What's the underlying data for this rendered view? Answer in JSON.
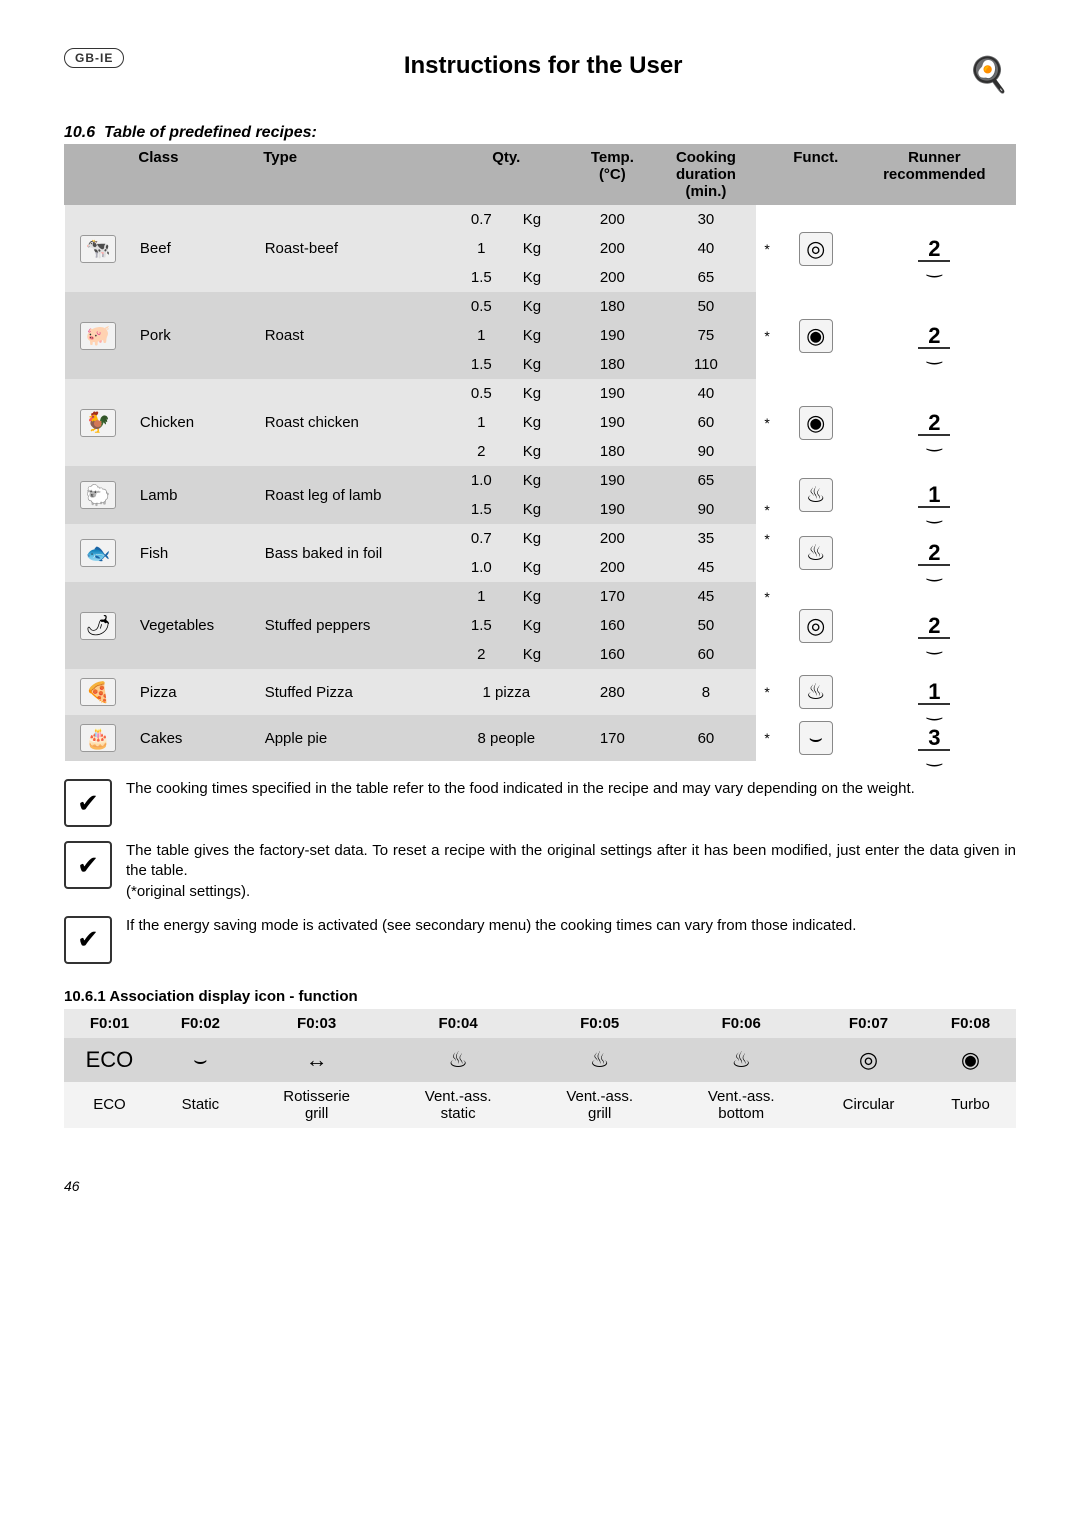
{
  "header": {
    "badge": "GB-IE",
    "title": "Instructions for the User",
    "chef_glyph": "🍳"
  },
  "section": {
    "number": "10.6",
    "title": "Table of predefined recipes:"
  },
  "table": {
    "headers": {
      "class": "Class",
      "type": "Type",
      "qty": "Qty.",
      "temp": "Temp.\n(°C)",
      "duration": "Cooking\nduration\n(min.)",
      "funct": "Funct.",
      "runner": "Runner\nrecommended"
    },
    "groups": [
      {
        "shade": "light",
        "icon": "🐄",
        "class": "Beef",
        "type": "Roast-beef",
        "funct": "◎",
        "runner": "2",
        "rows": [
          {
            "qty": "0.7",
            "unit": "Kg",
            "temp": "200",
            "dur": "30",
            "star": ""
          },
          {
            "qty": "1",
            "unit": "Kg",
            "temp": "200",
            "dur": "40",
            "star": "*"
          },
          {
            "qty": "1.5",
            "unit": "Kg",
            "temp": "200",
            "dur": "65",
            "star": ""
          }
        ]
      },
      {
        "shade": "dark",
        "icon": "🐖",
        "class": "Pork",
        "type": "Roast",
        "funct": "◉",
        "runner": "2",
        "rows": [
          {
            "qty": "0.5",
            "unit": "Kg",
            "temp": "180",
            "dur": "50",
            "star": ""
          },
          {
            "qty": "1",
            "unit": "Kg",
            "temp": "190",
            "dur": "75",
            "star": "*"
          },
          {
            "qty": "1.5",
            "unit": "Kg",
            "temp": "180",
            "dur": "110",
            "star": ""
          }
        ]
      },
      {
        "shade": "light",
        "icon": "🐓",
        "class": "Chicken",
        "type": "Roast chicken",
        "funct": "◉",
        "runner": "2",
        "rows": [
          {
            "qty": "0.5",
            "unit": "Kg",
            "temp": "190",
            "dur": "40",
            "star": ""
          },
          {
            "qty": "1",
            "unit": "Kg",
            "temp": "190",
            "dur": "60",
            "star": "*"
          },
          {
            "qty": "2",
            "unit": "Kg",
            "temp": "180",
            "dur": "90",
            "star": ""
          }
        ]
      },
      {
        "shade": "dark",
        "icon": "🐑",
        "class": "Lamb",
        "type": "Roast leg of lamb",
        "funct": "♨",
        "runner": "1",
        "rows": [
          {
            "qty": "1.0",
            "unit": "Kg",
            "temp": "190",
            "dur": "65",
            "star": ""
          },
          {
            "qty": "1.5",
            "unit": "Kg",
            "temp": "190",
            "dur": "90",
            "star": "*"
          }
        ]
      },
      {
        "shade": "light",
        "icon": "🐟",
        "class": "Fish",
        "type": "Bass baked in foil",
        "funct": "♨",
        "runner": "2",
        "rows": [
          {
            "qty": "0.7",
            "unit": "Kg",
            "temp": "200",
            "dur": "35",
            "star": "*"
          },
          {
            "qty": "1.0",
            "unit": "Kg",
            "temp": "200",
            "dur": "45",
            "star": ""
          }
        ]
      },
      {
        "shade": "dark",
        "icon": "🌶",
        "class": "Vegetables",
        "type": "Stuffed peppers",
        "funct": "◎",
        "runner": "2",
        "rows": [
          {
            "qty": "1",
            "unit": "Kg",
            "temp": "170",
            "dur": "45",
            "star": "*"
          },
          {
            "qty": "1.5",
            "unit": "Kg",
            "temp": "160",
            "dur": "50",
            "star": ""
          },
          {
            "qty": "2",
            "unit": "Kg",
            "temp": "160",
            "dur": "60",
            "star": ""
          }
        ]
      },
      {
        "shade": "light",
        "icon": "🍕",
        "class": "Pizza",
        "type": "Stuffed Pizza",
        "funct": "♨",
        "runner": "1",
        "rows": [
          {
            "qty": "1 pizza",
            "unit": "",
            "temp": "280",
            "dur": "8",
            "star": "*"
          }
        ]
      },
      {
        "shade": "dark",
        "icon": "🎂",
        "class": "Cakes",
        "type": "Apple pie",
        "funct": "⌣",
        "runner": "3",
        "rows": [
          {
            "qty": "8 people",
            "unit": "",
            "temp": "170",
            "dur": "60",
            "star": "*"
          }
        ]
      }
    ]
  },
  "notes": [
    "The cooking times specified in the table refer to the food indicated in the recipe and may vary depending on the weight.",
    "The table gives the factory-set data. To reset a recipe with the original settings after it has been modified, just enter the data given in the table.\n(*original settings).",
    "If the energy saving mode is activated (see secondary menu) the cooking times can vary from those indicated."
  ],
  "note_icon_glyph": "✔",
  "assoc": {
    "title": "10.6.1 Association display icon - function",
    "cols": [
      {
        "f": "F0:01",
        "icon": "ECO",
        "label": "ECO"
      },
      {
        "f": "F0:02",
        "icon": "⌣",
        "label": "Static"
      },
      {
        "f": "F0:03",
        "icon": "↔",
        "label": "Rotisserie\ngrill"
      },
      {
        "f": "F0:04",
        "icon": "♨",
        "label": "Vent.-ass.\nstatic"
      },
      {
        "f": "F0:05",
        "icon": "♨",
        "label": "Vent.-ass.\ngrill"
      },
      {
        "f": "F0:06",
        "icon": "♨",
        "label": "Vent.-ass.\nbottom"
      },
      {
        "f": "F0:07",
        "icon": "◎",
        "label": "Circular"
      },
      {
        "f": "F0:08",
        "icon": "◉",
        "label": "Turbo"
      }
    ]
  },
  "page_number": "46"
}
